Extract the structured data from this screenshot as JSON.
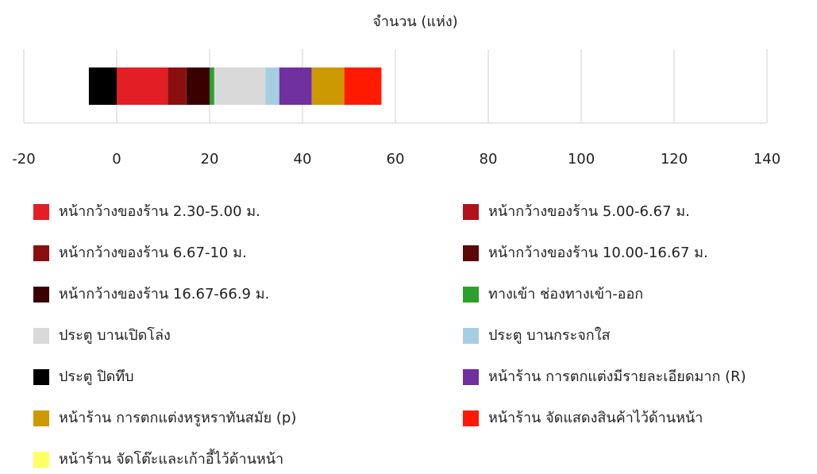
{
  "chart_data": {
    "type": "bar",
    "orientation": "horizontal",
    "stacked": true,
    "title": "จำนวน (แห่ง)",
    "xlim": [
      -20,
      140
    ],
    "xticks": [
      -20,
      0,
      20,
      40,
      60,
      80,
      100,
      120,
      140
    ],
    "grid": true,
    "series": [
      {
        "name": "หน้ากว้างของร้าน 2.30-5.00 ม.",
        "color": "#e31e24",
        "values": [
          11
        ]
      },
      {
        "name": "หน้ากว้างของร้าน 5.00-6.67 ม.",
        "color": "#b2121a",
        "values": [
          0
        ]
      },
      {
        "name": "หน้ากว้างของร้าน 6.67-10 ม.",
        "color": "#8b0f0f",
        "values": [
          4
        ]
      },
      {
        "name": "หน้ากว้างของร้าน 10.00-16.67 ม.",
        "color": "#5c0808",
        "values": [
          0
        ]
      },
      {
        "name": "หน้ากว้างของร้าน 16.67-66.9 ม.",
        "color": "#3a0000",
        "values": [
          5
        ]
      },
      {
        "name": "ทางเข้า ช่องทางเข้า-ออก",
        "color": "#2ca02c",
        "values": [
          1
        ]
      },
      {
        "name": "ประตู บานเปิดโล่ง",
        "color": "#d9d9d9",
        "values": [
          11
        ]
      },
      {
        "name": "ประตู บานกระจกใส",
        "color": "#a6cee3",
        "values": [
          3
        ]
      },
      {
        "name": "ประตู ปิดทึบ",
        "color": "#000000",
        "values": [
          -6
        ]
      },
      {
        "name": "หน้าร้าน การตกแต่งมีรายละเอียดมาก (R)",
        "color": "#7030a0",
        "values": [
          7
        ]
      },
      {
        "name": "หน้าร้าน การตกแต่งหรูหราทันสมัย (p)",
        "color": "#cc9900",
        "values": [
          7
        ]
      },
      {
        "name": "หน้าร้าน จัดแสดงสินค้าไว้ด้านหน้า",
        "color": "#ff1a00",
        "values": [
          8
        ]
      },
      {
        "name": "หน้าร้าน จัดโต๊ะและเก้าอี้ไว้ด้านหน้า",
        "color": "#ffff66",
        "values": [
          0
        ]
      }
    ]
  }
}
